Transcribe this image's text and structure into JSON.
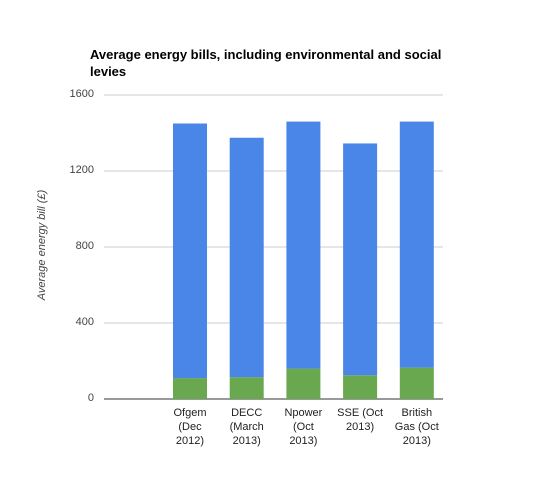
{
  "chart_data": {
    "type": "bar",
    "stacked": true,
    "title": "Average energy bills, including environmental and social levies",
    "xlabel": "",
    "ylabel": "Average energy bill (£)",
    "ylim": [
      0,
      1600
    ],
    "yticks": [
      "0",
      "400",
      "800",
      "1200",
      "1600"
    ],
    "grid": true,
    "categories": [
      [
        "Ofgem",
        "(Dec",
        "2012)"
      ],
      [
        "DECC",
        "(March",
        "2013)"
      ],
      [
        "Npower",
        "(Oct",
        "2013)"
      ],
      [
        "SSE (Oct",
        "2013)"
      ],
      [
        "British",
        "Gas (Oct",
        "2013)"
      ]
    ],
    "series": [
      {
        "values": [
          110,
          115,
          160,
          125,
          165
        ],
        "color": "#6aa84f"
      },
      {
        "values": [
          1340,
          1260,
          1300,
          1220,
          1295
        ],
        "color": "#4a86e8"
      }
    ]
  }
}
